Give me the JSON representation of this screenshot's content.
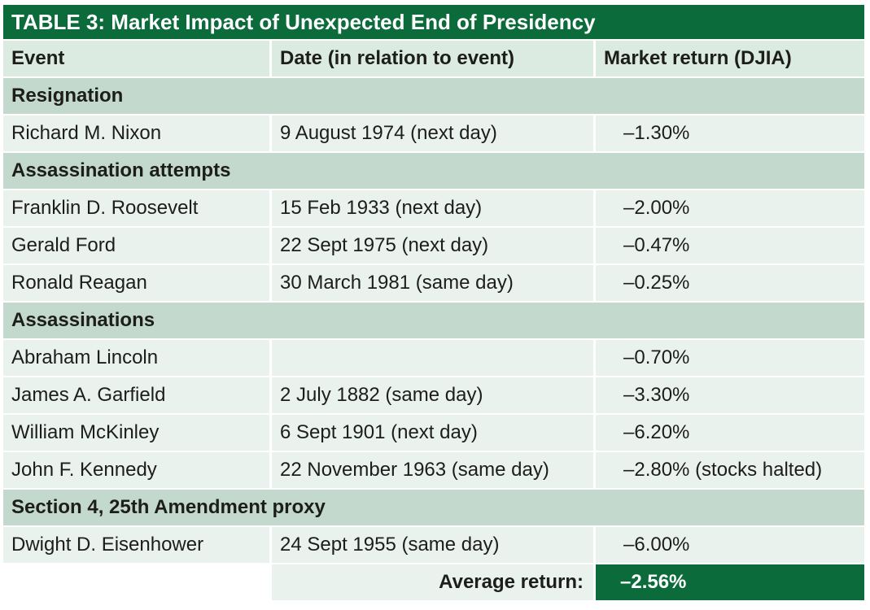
{
  "title": "TABLE 3: Market Impact of Unexpected End of Presidency",
  "colors": {
    "header_green": "#0b6b3a",
    "section_bg": "#c3d9cd",
    "header_bg": "#dcebe2",
    "row_bg": "#e9f2ed"
  },
  "headers": {
    "event": "Event",
    "date": "Date (in relation to event)",
    "return": "Market return (DJIA)"
  },
  "sections": [
    {
      "label": "Resignation",
      "rows": [
        {
          "event": "Richard M. Nixon",
          "date": "9 August 1974 (next day)",
          "return": "–1.30%"
        }
      ]
    },
    {
      "label": "Assassination attempts",
      "rows": [
        {
          "event": "Franklin D. Roosevelt",
          "date": "15 Feb 1933 (next day)",
          "return": "–2.00%"
        },
        {
          "event": "Gerald Ford",
          "date": "22 Sept 1975 (next day)",
          "return": "–0.47%"
        },
        {
          "event": "Ronald Reagan",
          "date": "30 March 1981 (same day)",
          "return": "–0.25%"
        }
      ]
    },
    {
      "label": "Assassinations",
      "rows": [
        {
          "event": "Abraham Lincoln",
          "date": "",
          "return": "–0.70%"
        },
        {
          "event": "James A. Garfield",
          "date": "2 July 1882 (same day)",
          "return": "–3.30%"
        },
        {
          "event": "William McKinley",
          "date": "6 Sept 1901 (next day)",
          "return": "–6.20%"
        },
        {
          "event": "John F. Kennedy",
          "date": "22 November 1963 (same day)",
          "return": "–2.80% (stocks halted)"
        }
      ]
    },
    {
      "label": "Section 4, 25th Amendment proxy",
      "rows": [
        {
          "event": "Dwight D. Eisenhower",
          "date": "24 Sept 1955 (same day)",
          "return": "–6.00%"
        }
      ]
    }
  ],
  "average": {
    "label": "Average return:",
    "value": "–2.56%"
  }
}
